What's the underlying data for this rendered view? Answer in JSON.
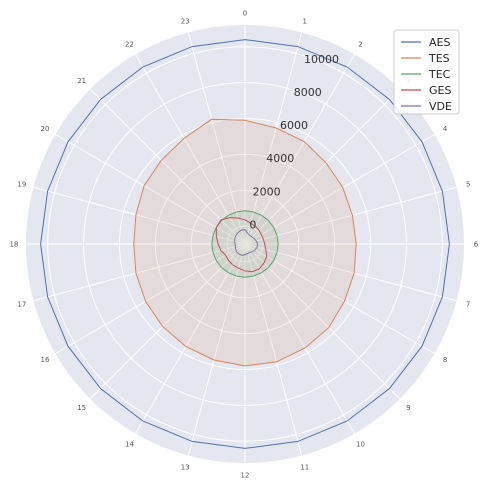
{
  "chart_data": {
    "type": "radar",
    "angle_labels": [
      "0",
      "1",
      "2",
      "3",
      "4",
      "5",
      "6",
      "7",
      "8",
      "9",
      "10",
      "11",
      "12",
      "13",
      "14",
      "15",
      "16",
      "17",
      "18",
      "19",
      "20",
      "21",
      "22",
      "23"
    ],
    "radial_ticks": [
      "0",
      "2000",
      "4000",
      "6000",
      "8000",
      "10000"
    ],
    "rlim": [
      -1000,
      10600
    ],
    "grid": true,
    "legend_position": "top-right",
    "series": [
      {
        "name": "AES",
        "color": "#4c72b0",
        "values": [
          10400,
          10400,
          10400,
          10400,
          10400,
          10400,
          10400,
          10400,
          10400,
          10400,
          10400,
          10400,
          10400,
          10400,
          10400,
          10400,
          10400,
          10400,
          10400,
          10400,
          10400,
          10400,
          10400,
          10400
        ]
      },
      {
        "name": "TES",
        "color": "#dd8452",
        "values": [
          5900,
          5700,
          5600,
          5400,
          5300,
          5200,
          5200,
          5300,
          5400,
          5600,
          5700,
          5800,
          5800,
          5700,
          5600,
          5500,
          5400,
          5300,
          5200,
          5300,
          5500,
          5600,
          5800,
          6200
        ],
        "fill": true
      },
      {
        "name": "TEC",
        "color": "#55a868",
        "values": [
          850,
          850,
          850,
          850,
          850,
          850,
          850,
          850,
          850,
          850,
          850,
          850,
          850,
          850,
          850,
          850,
          850,
          850,
          850,
          850,
          850,
          850,
          850,
          850
        ],
        "fill": true
      },
      {
        "name": "GES",
        "color": "#c44e52",
        "values": [
          350,
          200,
          150,
          100,
          50,
          50,
          100,
          200,
          400,
          500,
          600,
          600,
          500,
          400,
          350,
          300,
          250,
          400,
          500,
          650,
          850,
          900,
          700,
          500
        ]
      },
      {
        "name": "VDE",
        "color": "#8172b3",
        "values": [
          -200,
          -400,
          -450,
          -450,
          -400,
          -350,
          -300,
          -300,
          -350,
          -400,
          -450,
          -450,
          -400,
          -350,
          -350,
          -350,
          -400,
          -450,
          -450,
          -400,
          -350,
          -300,
          -250,
          -200
        ]
      }
    ]
  }
}
